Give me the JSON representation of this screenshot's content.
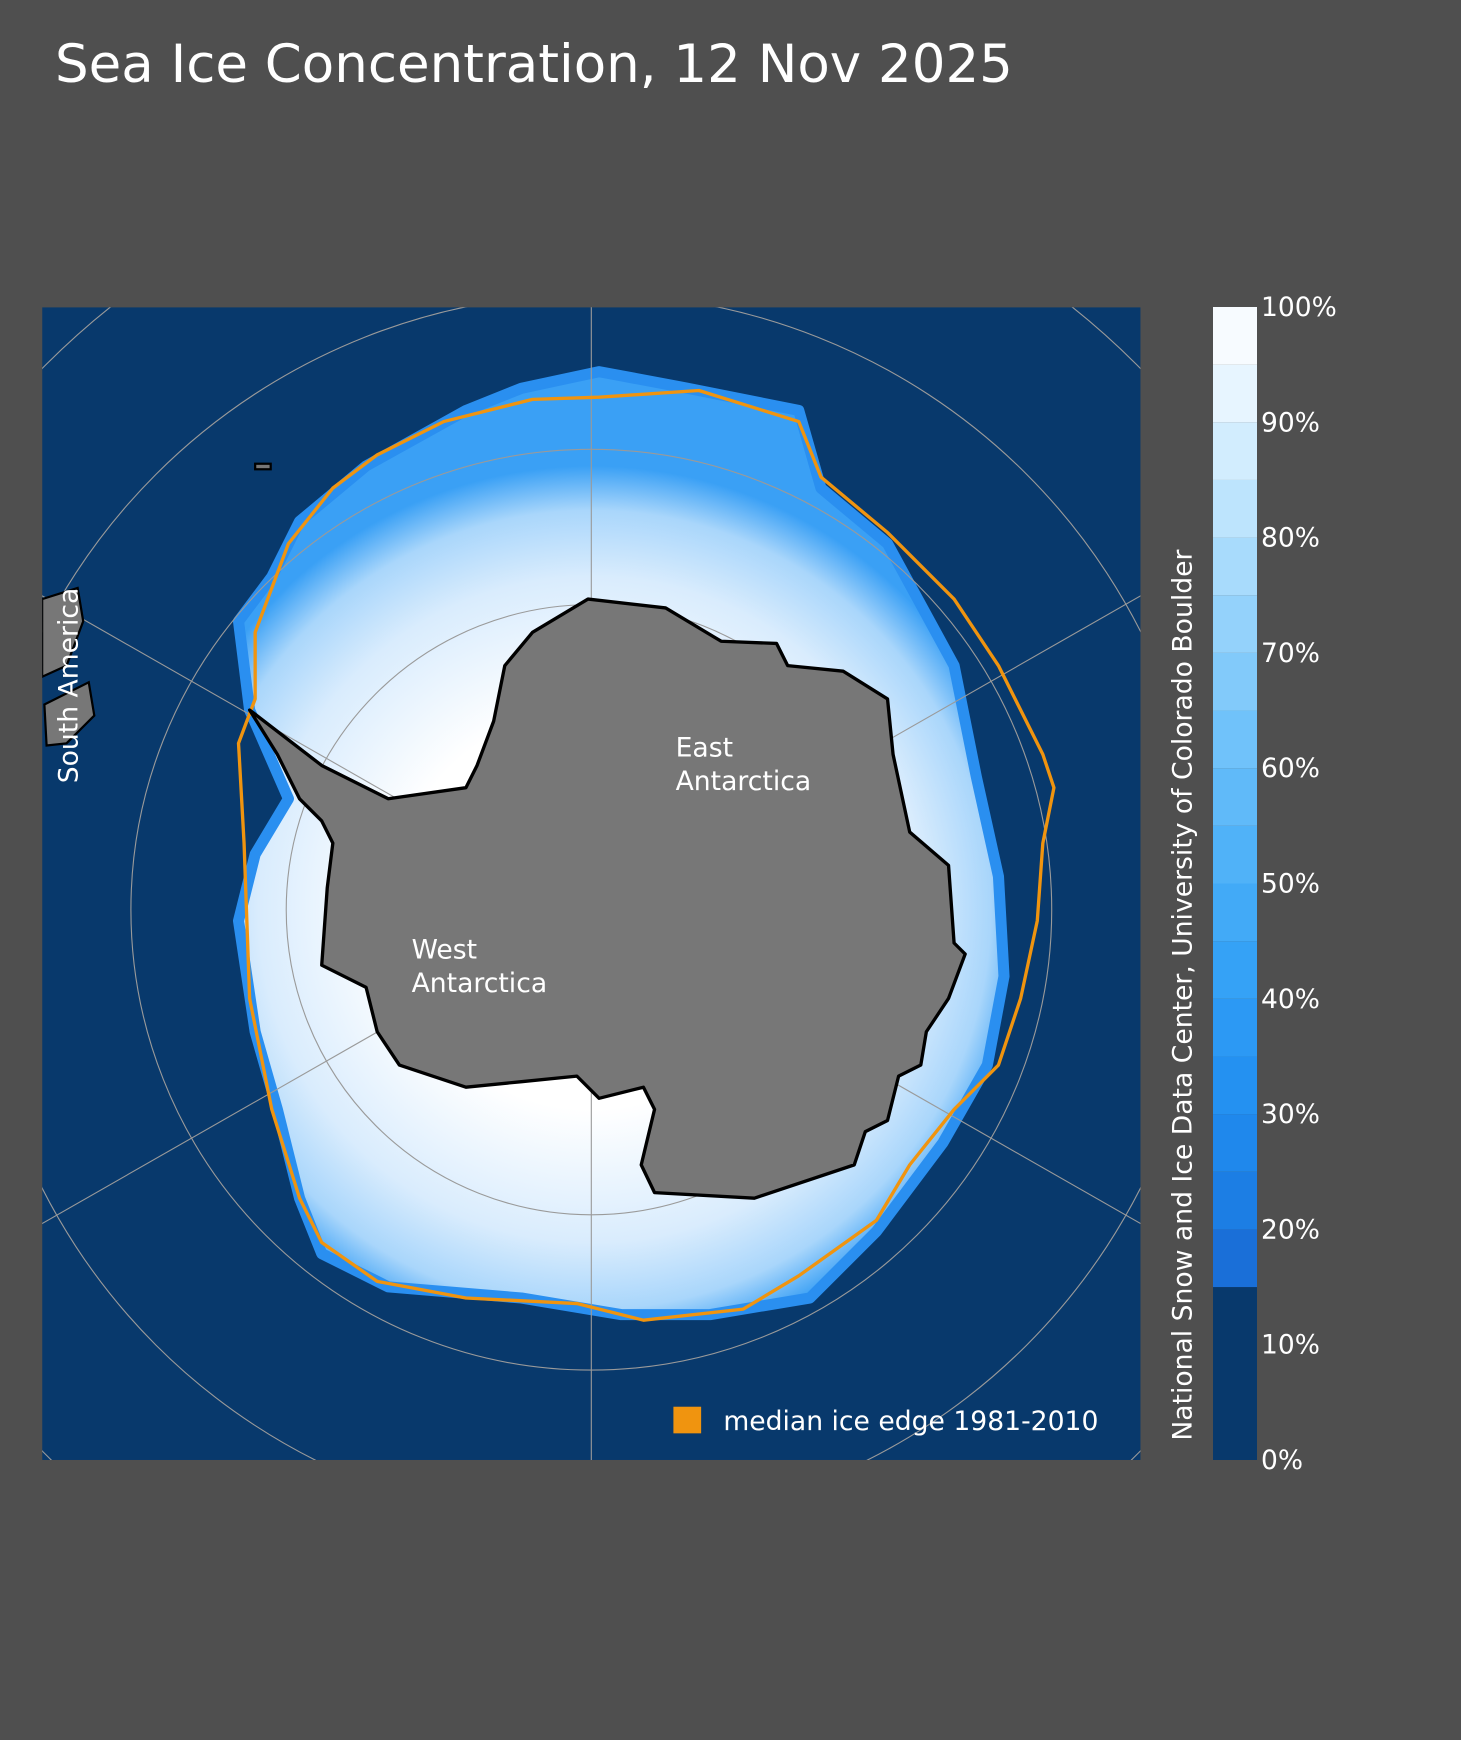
{
  "title": "Sea Ice Concentration, 12 Nov 2025",
  "map": {
    "labels": {
      "south_america": "South America",
      "east_antarctica": [
        "East",
        "Antarctica"
      ],
      "west_antarctica": [
        "West",
        "Antarctica"
      ]
    },
    "legend": "median ice edge 1981-2010"
  },
  "credit": "National Snow and Ice Data Center, University of Colorado Boulder",
  "colorbar": {
    "range": [
      0,
      100
    ],
    "ticks": [
      {
        "value": 0,
        "label": "0%"
      },
      {
        "value": 10,
        "label": "10%"
      },
      {
        "value": 20,
        "label": "20%"
      },
      {
        "value": 30,
        "label": "30%"
      },
      {
        "value": 40,
        "label": "40%"
      },
      {
        "value": 50,
        "label": "50%"
      },
      {
        "value": 60,
        "label": "60%"
      },
      {
        "value": 70,
        "label": "70%"
      },
      {
        "value": 80,
        "label": "80%"
      },
      {
        "value": 90,
        "label": "90%"
      },
      {
        "value": 100,
        "label": "100%"
      }
    ],
    "levels": [
      0,
      15,
      20,
      25,
      30,
      35,
      40,
      45,
      50,
      55,
      60,
      65,
      70,
      75,
      80,
      85,
      90,
      95,
      100
    ],
    "colors": [
      "#08396c",
      "#1a6fd8",
      "#1c7ee4",
      "#1f88ec",
      "#2491f1",
      "#2c99f4",
      "#35a2f6",
      "#42aaf7",
      "#50b2f8",
      "#60baf9",
      "#70c2fa",
      "#82cafa",
      "#94d2fb",
      "#a8dbfc",
      "#bde4fd",
      "#d2edfe",
      "#e7f5ff",
      "#f7fbff"
    ]
  }
}
